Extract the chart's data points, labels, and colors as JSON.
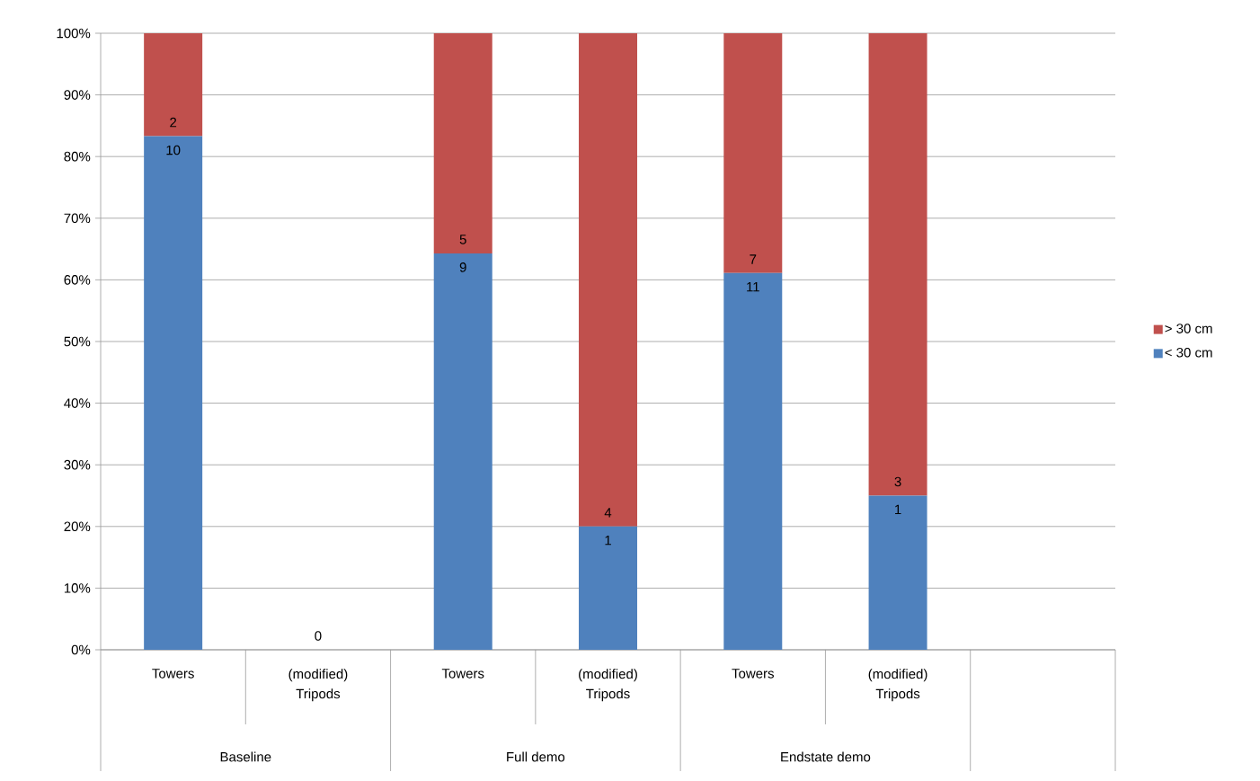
{
  "chart_data": {
    "type": "bar",
    "stacked": true,
    "categories": [
      "Towers",
      "(modified) Tripods",
      "Towers",
      "(modified) Tripods",
      "Towers",
      "(modified) Tripods",
      null
    ],
    "series": [
      {
        "name": "< 30 cm",
        "color": "#4f81bd",
        "values": [
          83.3,
          0,
          64.3,
          20,
          61.1,
          25,
          null
        ]
      },
      {
        "name": "> 30 cm",
        "color": "#c0504d",
        "values": [
          16.7,
          0,
          35.7,
          80,
          38.9,
          75,
          null
        ]
      }
    ],
    "ylim": [
      0,
      100
    ],
    "yticks": [
      {
        "value": 0,
        "label": "0%"
      },
      {
        "value": 10,
        "label": "10%"
      },
      {
        "value": 20,
        "label": "20%"
      },
      {
        "value": 30,
        "label": "30%"
      },
      {
        "value": 40,
        "label": "40%"
      },
      {
        "value": 50,
        "label": "50%"
      },
      {
        "value": 60,
        "label": "60%"
      },
      {
        "value": 70,
        "label": "70%"
      },
      {
        "value": 80,
        "label": "80%"
      },
      {
        "value": 90,
        "label": "90%"
      },
      {
        "value": 100,
        "label": "100%"
      }
    ],
    "annotations": [
      "2",
      "10",
      "0",
      "5",
      "9",
      "4",
      "1",
      "7",
      "11",
      "3",
      "1",
      "Baseline",
      "Full demo",
      "Endstate demo"
    ],
    "grid": "y",
    "legend": "right"
  }
}
